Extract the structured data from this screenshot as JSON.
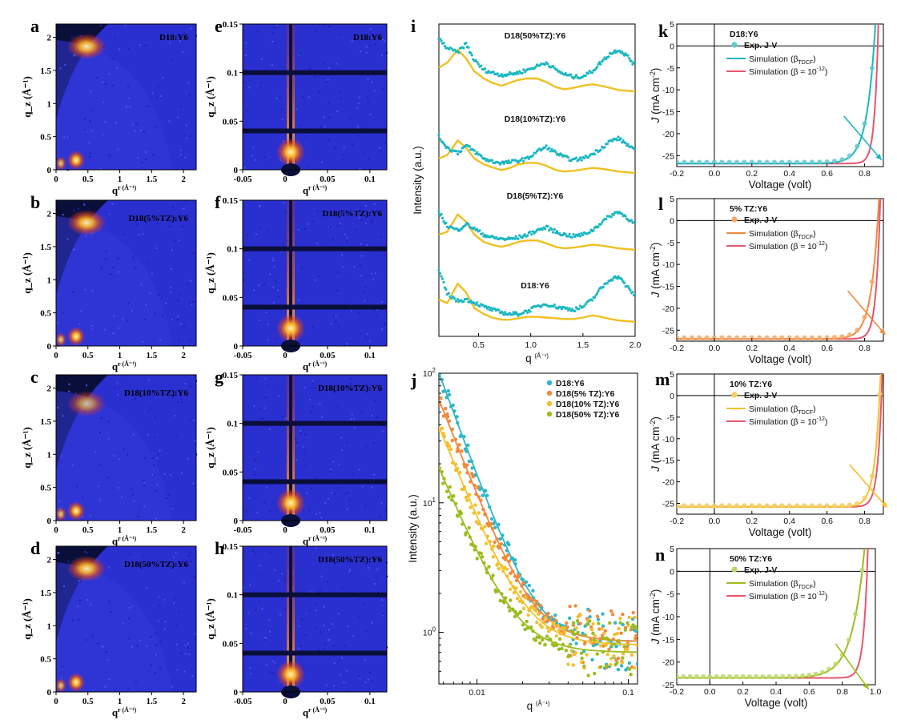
{
  "page": {
    "panel_letters": [
      "a",
      "b",
      "c",
      "d",
      "e",
      "f",
      "g",
      "h",
      "i",
      "j",
      "k",
      "l",
      "m",
      "n"
    ]
  },
  "giwaxs_2d": {
    "xlabel": "q_r (Å⁻¹)",
    "ylabel": "q_z (Å⁻¹)",
    "xticks": [
      "0",
      "0.5",
      "1",
      "1.5",
      "2"
    ],
    "yticks": [
      "0",
      "0.5",
      "1",
      "1.5",
      "2"
    ],
    "panels": [
      {
        "letter": "a",
        "title": "D18:Y6"
      },
      {
        "letter": "b",
        "title": "D18(5%TZ):Y6"
      },
      {
        "letter": "c",
        "title": "D18(10%TZ):Y6"
      },
      {
        "letter": "d",
        "title": "D18(50%TZ):Y6"
      }
    ]
  },
  "gisaxs_2d": {
    "xlabel": "q_r (Å⁻¹)",
    "ylabel": "q_z (Å⁻¹)",
    "xticks": [
      "-0.05",
      "0",
      "0.05",
      "0.1"
    ],
    "yticks": [
      "0",
      "0.05",
      "0.1",
      "0.15"
    ],
    "panels": [
      {
        "letter": "e",
        "title": "D18:Y6"
      },
      {
        "letter": "f",
        "title": "D18(5%TZ):Y6"
      },
      {
        "letter": "g",
        "title": "D18(10%TZ):Y6"
      },
      {
        "letter": "h",
        "title": "D18(50%TZ):Y6"
      }
    ]
  },
  "colors": {
    "detector_bg": "#2a2fd0",
    "scatter_cyan": "#19b7c2",
    "fit_gold": "#f0c020",
    "d18_y6": "#2fb7c9",
    "tz5": "#f08a3c",
    "tz10": "#f3c02a",
    "tz50": "#9bbd1e",
    "sim_pink": "#e8556e"
  },
  "chart_data": [
    {
      "panel": "i",
      "type": "line",
      "xlabel": "q (Å⁻¹)",
      "ylabel": "Intensity (a.u.)",
      "xticks": [
        "0.5",
        "1.0",
        "1.5",
        "2.0"
      ],
      "xlim": [
        0.12,
        2.0
      ],
      "series": [
        {
          "name": "D18(50%TZ):Y6",
          "color": "#9bbd1e",
          "exp_y": [
            0.85,
            0.72,
            0.66,
            0.78,
            0.55,
            0.42,
            0.38,
            0.35,
            0.36,
            0.38,
            0.42,
            0.47,
            0.52,
            0.42,
            0.36,
            0.32,
            0.33,
            0.4,
            0.52,
            0.64,
            0.7,
            0.62,
            0.48
          ],
          "fit_y": [
            0.45,
            0.52,
            0.7,
            0.58,
            0.4,
            0.3,
            0.24,
            0.2,
            0.24,
            0.28,
            0.3,
            0.3,
            0.25,
            0.18,
            0.15,
            0.17,
            0.2,
            0.22,
            0.2,
            0.17,
            0.14,
            0.13,
            0.12
          ]
        },
        {
          "name": "D18(10%TZ):Y6",
          "color": "#f3c02a",
          "exp_y": [
            0.6,
            0.45,
            0.38,
            0.48,
            0.4,
            0.3,
            0.26,
            0.24,
            0.25,
            0.27,
            0.3,
            0.4,
            0.46,
            0.38,
            0.32,
            0.28,
            0.3,
            0.36,
            0.44,
            0.54,
            0.58,
            0.5,
            0.4
          ],
          "fit_y": [
            0.3,
            0.35,
            0.55,
            0.45,
            0.3,
            0.22,
            0.18,
            0.14,
            0.17,
            0.22,
            0.24,
            0.24,
            0.2,
            0.14,
            0.12,
            0.13,
            0.15,
            0.17,
            0.16,
            0.14,
            0.12,
            0.11,
            0.1
          ]
        },
        {
          "name": "D18(5%TZ):Y6",
          "color": "#f08a3c",
          "exp_y": [
            0.62,
            0.42,
            0.36,
            0.45,
            0.38,
            0.3,
            0.26,
            0.24,
            0.24,
            0.26,
            0.3,
            0.36,
            0.4,
            0.34,
            0.3,
            0.28,
            0.3,
            0.36,
            0.46,
            0.56,
            0.62,
            0.54,
            0.44
          ],
          "fit_y": [
            0.3,
            0.34,
            0.58,
            0.48,
            0.3,
            0.2,
            0.16,
            0.13,
            0.16,
            0.2,
            0.22,
            0.22,
            0.18,
            0.13,
            0.11,
            0.12,
            0.14,
            0.16,
            0.15,
            0.13,
            0.11,
            0.1,
            0.09
          ]
        },
        {
          "name": "D18:Y6",
          "color": "#2fb7c9",
          "exp_y": [
            0.8,
            0.48,
            0.38,
            0.4,
            0.36,
            0.3,
            0.26,
            0.22,
            0.2,
            0.2,
            0.24,
            0.3,
            0.34,
            0.3,
            0.28,
            0.26,
            0.3,
            0.4,
            0.55,
            0.68,
            0.72,
            0.58,
            0.45
          ],
          "fit_y": [
            0.4,
            0.35,
            0.62,
            0.5,
            0.28,
            0.2,
            0.15,
            0.12,
            0.12,
            0.14,
            0.16,
            0.16,
            0.15,
            0.14,
            0.13,
            0.13,
            0.15,
            0.18,
            0.16,
            0.13,
            0.11,
            0.1,
            0.09
          ]
        }
      ],
      "q_points": [
        0.12,
        0.2,
        0.3,
        0.38,
        0.46,
        0.55,
        0.63,
        0.72,
        0.8,
        0.88,
        0.97,
        1.06,
        1.15,
        1.24,
        1.32,
        1.41,
        1.5,
        1.59,
        1.67,
        1.76,
        1.84,
        1.92,
        2.0
      ]
    },
    {
      "panel": "j",
      "type": "scatter",
      "xlabel": "q (Å⁻¹)",
      "ylabel": "Intensity (a.u.)",
      "xscale": "log",
      "yscale": "log",
      "xlim": [
        0.0056,
        0.115
      ],
      "ylim": [
        0.4,
        100
      ],
      "xticks": [
        "0.01",
        "0.1"
      ],
      "yticks": [
        "10⁰",
        "10¹",
        "10²"
      ],
      "legend_position": "top-right",
      "series": [
        {
          "name": "D18:Y6",
          "color": "#2fb7c9",
          "A": 100,
          "alpha": 3.2,
          "floor": 0.85
        },
        {
          "name": "D18(5% TZ):Y6",
          "color": "#f08a3c",
          "A": 62,
          "alpha": 3.0,
          "floor": 0.85
        },
        {
          "name": "D18(10% TZ):Y6",
          "color": "#f3c02a",
          "A": 38,
          "alpha": 2.9,
          "floor": 0.8
        },
        {
          "name": "D18(50% TZ):Y6",
          "color": "#9bbd1e",
          "A": 18,
          "alpha": 2.8,
          "floor": 0.7
        }
      ]
    },
    {
      "panel": "k",
      "type": "line",
      "xlabel": "Voltage (volt)",
      "ylabel": "J (mA cm⁻²)",
      "xlim": [
        -0.2,
        0.9
      ],
      "ylim": [
        -27.5,
        5
      ],
      "xticks": [
        "-0.2",
        "0.0",
        "0.2",
        "0.4",
        "0.6",
        "0.8"
      ],
      "yticks": [
        "5",
        "0",
        "-5",
        "-10",
        "-15",
        "-20",
        "-25"
      ],
      "legend_title": "D18:Y6",
      "legend": [
        "Exp. J-V",
        "Simulation (β",
        "Simulation (β ≈ 10",
        "TDCF",
        "-12",
        ")"
      ],
      "exp_color": "#5fc9cf",
      "sim_color": "#19b7c2",
      "pink_color": "#e8556e",
      "Jsc": -26.8,
      "Voc_sim": 0.85,
      "Voc_pink": 0.87,
      "n_sim": 0.045,
      "n_pink": 0.02
    },
    {
      "panel": "l",
      "type": "line",
      "xlabel": "Voltage (volt)",
      "ylabel": "J (mA cm⁻²)",
      "xlim": [
        -0.2,
        0.9
      ],
      "ylim": [
        -27.5,
        5
      ],
      "xticks": [
        "-0.2",
        "0.0",
        "0.2",
        "0.4",
        "0.6",
        "0.8"
      ],
      "yticks": [
        "5",
        "0",
        "-5",
        "-10",
        "-15",
        "-20",
        "-25"
      ],
      "legend_title": "5% TZ:Y6",
      "legend": [
        "Exp. J-V",
        "Simulation (β",
        "Simulation (β ≈ 10",
        "TDCF",
        "-12",
        ")"
      ],
      "exp_color": "#f2a86a",
      "sim_color": "#f08a3c",
      "pink_color": "#e8556e",
      "Jsc": -27.0,
      "Voc_sim": 0.87,
      "Voc_pink": 0.88,
      "n_sim": 0.04,
      "n_pink": 0.022
    },
    {
      "panel": "m",
      "type": "line",
      "xlabel": "Voltage (volt)",
      "ylabel": "J (mA cm⁻²)",
      "xlim": [
        -0.2,
        0.9
      ],
      "ylim": [
        -27.5,
        5
      ],
      "xticks": [
        "-0.2",
        "0.0",
        "0.2",
        "0.4",
        "0.6",
        "0.8"
      ],
      "yticks": [
        "5",
        "0",
        "-5",
        "-10",
        "-15",
        "-20",
        "-25"
      ],
      "legend_title": "10% TZ:Y6",
      "legend": [
        "Exp. J-V",
        "Simulation (β",
        "Simulation (β ≈ 10",
        "TDCF",
        "-12",
        ")"
      ],
      "exp_color": "#f6cd5c",
      "sim_color": "#f3c02a",
      "pink_color": "#e8556e",
      "Jsc": -25.8,
      "Voc_sim": 0.88,
      "Voc_pink": 0.89,
      "n_sim": 0.03,
      "n_pink": 0.022
    },
    {
      "panel": "n",
      "type": "line",
      "xlabel": "Voltage (volt)",
      "ylabel": "J (mA cm⁻²)",
      "xlim": [
        -0.2,
        1.0
      ],
      "ylim": [
        -25,
        5
      ],
      "xticks": [
        "-0.2",
        "0.0",
        "0.2",
        "0.4",
        "0.6",
        "0.8",
        "1.0"
      ],
      "yticks": [
        "5",
        "0",
        "-5",
        "-10",
        "-15",
        "-20",
        "-25"
      ],
      "legend_title": "50% TZ:Y6",
      "legend": [
        "Exp. J-V",
        "Simulation (β",
        "Simulation (β ≈ 10",
        "TDCF",
        "-12",
        ")"
      ],
      "exp_color": "#bcd86a",
      "sim_color": "#9bbd1e",
      "pink_color": "#e8556e",
      "Jsc": -23.5,
      "Voc_sim": 0.92,
      "Voc_pink": 0.95,
      "n_sim": 0.075,
      "n_pink": 0.025
    }
  ]
}
